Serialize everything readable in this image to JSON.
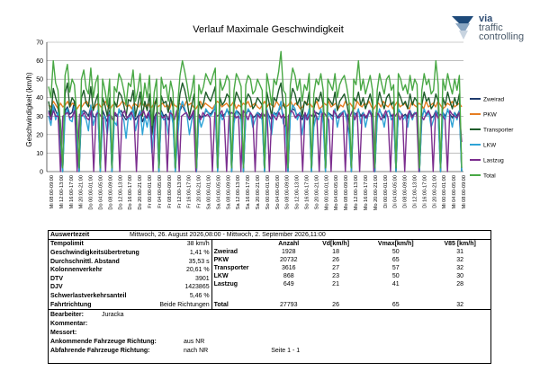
{
  "logo": {
    "line1": "via",
    "line2": "traffic",
    "line3": "controlling"
  },
  "page_label": "Seite 1 - 1",
  "chart_data": {
    "type": "line",
    "title": "Verlauf  Maximale Geschwindigkeit",
    "ylabel": "Geschwindigkeit (km/h)",
    "ylim": [
      0,
      70
    ],
    "yticks": [
      0,
      10,
      20,
      30,
      40,
      50,
      60,
      70
    ],
    "grid": true,
    "legend_position": "right",
    "x_tick_labels": [
      "Mi 08:00-09:00",
      "Mi 12:00-13:00",
      "Mi 16:00-17:00",
      "Mi 20:00-21:00",
      "Do 00:00-01:00",
      "Do 04:00-05:00",
      "Do 08:00-09:00",
      "Do 12:00-13:00",
      "Do 16:00-17:00",
      "Do 20:00-21:00",
      "Fr 00:00-01:00",
      "Fr 04:00-05:00",
      "Fr 08:00-09:00",
      "Fr 12:00-13:00",
      "Fr 16:00-17:00",
      "Fr 20:00-21:00",
      "Sa 00:00-01:00",
      "Sa 04:00-05:00",
      "Sa 08:00-09:00",
      "Sa 12:00-13:00",
      "Sa 16:00-17:00",
      "Sa 20:00-21:00",
      "So 00:00-01:00",
      "So 04:00-05:00",
      "So 08:00-09:00",
      "So 12:00-13:00",
      "So 16:00-17:00",
      "So 20:00-21:00",
      "Mo 00:00-01:00",
      "Mo 04:00-05:00",
      "Mo 08:00-09:00",
      "Mo 12:00-13:00",
      "Mo 16:00-17:00",
      "Mo 20:00-21:00",
      "Di 00:00-01:00",
      "Di 04:00-05:00",
      "Di 08:00-09:00",
      "Di 12:00-13:00",
      "Di 16:00-17:00",
      "Di 20:00-21:00",
      "Mi 00:00-01:00",
      "Mi 04:00-05:00",
      "Mi 08:00-09:00"
    ],
    "series": [
      {
        "name": "Zweirad",
        "color": "#1f3b6e",
        "values": [
          33,
          30,
          36,
          33,
          30,
          28,
          0,
          33,
          35,
          31,
          32,
          38,
          28,
          0,
          32,
          33,
          32,
          30,
          35,
          30,
          29,
          33,
          0,
          33,
          30,
          27,
          33,
          0,
          31,
          30,
          32,
          33,
          30,
          28,
          30,
          32,
          33,
          28,
          30,
          33,
          27,
          30,
          29,
          33,
          20,
          29,
          32,
          0,
          33,
          30,
          31,
          28,
          32,
          29,
          0,
          27,
          33,
          36,
          33,
          31,
          28,
          30,
          33,
          0,
          31,
          29,
          30,
          33,
          32,
          31,
          33,
          34,
          0,
          32,
          30,
          31,
          33,
          32,
          0,
          30,
          33,
          32,
          30,
          0,
          31,
          33,
          32,
          29,
          30,
          32,
          31,
          30,
          0,
          33,
          30,
          28,
          32,
          31,
          33,
          35,
          30,
          29,
          0,
          31,
          34,
          33,
          30,
          32,
          28,
          31,
          30,
          33,
          0,
          29,
          32,
          31,
          33,
          30,
          0,
          32,
          31,
          30,
          33,
          29,
          31,
          32,
          33,
          30,
          28,
          0,
          32,
          31,
          33,
          30,
          32,
          29,
          31,
          33,
          30,
          0,
          30,
          33,
          31,
          29,
          32,
          33,
          30,
          31,
          0,
          33,
          32,
          30,
          31,
          29,
          33,
          30,
          32,
          31,
          0,
          30,
          33,
          31,
          32,
          29,
          30,
          33,
          31,
          0,
          32,
          30,
          33,
          31,
          29,
          32,
          30,
          33,
          0
        ]
      },
      {
        "name": "PKW",
        "color": "#e67e22",
        "values": [
          36,
          35,
          38,
          36,
          34,
          37,
          35,
          36,
          38,
          35,
          37,
          36,
          34,
          36,
          35,
          37,
          38,
          36,
          35,
          34,
          36,
          37,
          35,
          36,
          38,
          35,
          34,
          36,
          37,
          35,
          36,
          38,
          37,
          35,
          36,
          34,
          37,
          36,
          35,
          38,
          36,
          35,
          37,
          34,
          36,
          38,
          35,
          36,
          37,
          35,
          36,
          34,
          38,
          36,
          35,
          37,
          36,
          35,
          38,
          36,
          37,
          35,
          34,
          36,
          38,
          35,
          37,
          36,
          35,
          34,
          36,
          38,
          37,
          35,
          36,
          37,
          35,
          36,
          38,
          34,
          36,
          35,
          37,
          36,
          38,
          35,
          36,
          37,
          35,
          34,
          36,
          38,
          35,
          37,
          36,
          35,
          38,
          36,
          34,
          37,
          35,
          36,
          38,
          35,
          37,
          36,
          34,
          35,
          38,
          36,
          37,
          35,
          36,
          38,
          34,
          35,
          37,
          36,
          38,
          35,
          36,
          37,
          34,
          36,
          35,
          38,
          36,
          37,
          35,
          34,
          38,
          36,
          35,
          37,
          36,
          38,
          35,
          34,
          36,
          37,
          35,
          38,
          36,
          35,
          37,
          34,
          36,
          38,
          35,
          36,
          37,
          35,
          34,
          38,
          36,
          35,
          37,
          36,
          34,
          38,
          35,
          36,
          37,
          35,
          38,
          36,
          34,
          35,
          37,
          36,
          38,
          35,
          36,
          37,
          35
        ]
      },
      {
        "name": "Transporter",
        "color": "#1e5c2a",
        "values": [
          38,
          30,
          45,
          40,
          36,
          20,
          0,
          42,
          48,
          35,
          40,
          38,
          25,
          0,
          40,
          44,
          37,
          35,
          46,
          33,
          38,
          42,
          0,
          40,
          36,
          30,
          40,
          0,
          38,
          35,
          43,
          41,
          36,
          30,
          39,
          38,
          44,
          30,
          36,
          43,
          30,
          38,
          33,
          42,
          20,
          35,
          40,
          0,
          41,
          37,
          38,
          32,
          40,
          35,
          0,
          30,
          42,
          48,
          44,
          38,
          30,
          36,
          42,
          0,
          38,
          34,
          37,
          43,
          40,
          38,
          42,
          46,
          0,
          40,
          36,
          38,
          42,
          40,
          0,
          36,
          43,
          40,
          37,
          0,
          38,
          42,
          40,
          34,
          36,
          40,
          38,
          36,
          0,
          43,
          37,
          30,
          40,
          38,
          44,
          48,
          36,
          34,
          0,
          38,
          45,
          42,
          36,
          40,
          30,
          38,
          36,
          43,
          0,
          34,
          40,
          38,
          43,
          36,
          0,
          40,
          38,
          36,
          43,
          33,
          38,
          40,
          42,
          37,
          30,
          0,
          40,
          38,
          43,
          36,
          40,
          34,
          38,
          42,
          36,
          0,
          36,
          43,
          38,
          34,
          40,
          42,
          36,
          38,
          0,
          43,
          40,
          36,
          38,
          34,
          42,
          36,
          40,
          38,
          0,
          36,
          43,
          38,
          40,
          34,
          36,
          42,
          38,
          0,
          40,
          36,
          43,
          38,
          34,
          40,
          36,
          42,
          0
        ]
      },
      {
        "name": "LKW",
        "color": "#2ea3d6",
        "values": [
          30,
          25,
          36,
          28,
          32,
          10,
          0,
          30,
          34,
          28,
          27,
          35,
          15,
          0,
          33,
          30,
          28,
          22,
          36,
          25,
          30,
          33,
          0,
          28,
          30,
          20,
          32,
          0,
          27,
          25,
          34,
          30,
          28,
          18,
          30,
          28,
          35,
          22,
          28,
          33,
          20,
          30,
          24,
          32,
          10,
          26,
          31,
          0,
          32,
          28,
          29,
          20,
          33,
          26,
          0,
          18,
          34,
          38,
          34,
          30,
          20,
          28,
          32,
          0,
          30,
          24,
          28,
          34,
          32,
          30,
          32,
          36,
          0,
          32,
          28,
          30,
          34,
          30,
          0,
          26,
          33,
          30,
          28,
          0,
          30,
          34,
          32,
          24,
          28,
          32,
          30,
          28,
          0,
          34,
          28,
          20,
          32,
          30,
          33,
          38,
          26,
          24,
          0,
          30,
          36,
          34,
          28,
          32,
          20,
          30,
          28,
          34,
          0,
          24,
          30,
          28,
          34,
          26,
          0,
          32,
          30,
          28,
          34,
          24,
          30,
          32,
          33,
          28,
          20,
          0,
          32,
          30,
          34,
          26,
          32,
          24,
          30,
          33,
          28,
          0,
          28,
          34,
          30,
          24,
          32,
          33,
          28,
          30,
          0,
          34,
          32,
          28,
          30,
          24,
          33,
          28,
          32,
          30,
          0,
          28,
          34,
          30,
          32,
          24,
          28,
          33,
          30,
          0,
          32,
          28,
          34,
          30,
          24,
          32,
          28,
          33,
          0
        ]
      },
      {
        "name": "Lastzug",
        "color": "#7b2d8e",
        "values": [
          32,
          28,
          33,
          30,
          30,
          0,
          30,
          31,
          32,
          29,
          30,
          33,
          0,
          31,
          30,
          32,
          29,
          28,
          33,
          0,
          31,
          32,
          30,
          29,
          0,
          30,
          31,
          28,
          32,
          30,
          0,
          31,
          33,
          29,
          30,
          32,
          28,
          0,
          30,
          31,
          33,
          29,
          32,
          28,
          0,
          30,
          32,
          31,
          29,
          30,
          0,
          32,
          31,
          28,
          33,
          0,
          30,
          31,
          32,
          29,
          30,
          33,
          0,
          31,
          28,
          32,
          30,
          31,
          29,
          0,
          32,
          30,
          31,
          33,
          28,
          0,
          30,
          32,
          31,
          29,
          30,
          0,
          33,
          31,
          28,
          32,
          30,
          0,
          31,
          29,
          32,
          30,
          33,
          0,
          31,
          30,
          28,
          32,
          29,
          31,
          0,
          30,
          33,
          32,
          29,
          31,
          30,
          0,
          32,
          28,
          31,
          30,
          33,
          29,
          0,
          31,
          32,
          30,
          28,
          0,
          33,
          31,
          29,
          30,
          32,
          0,
          31,
          30,
          33,
          28,
          32,
          0,
          30,
          31,
          29,
          33,
          30,
          0,
          32,
          31,
          28,
          30,
          33,
          29,
          0,
          31,
          30,
          32,
          28,
          31,
          0,
          30,
          33,
          29,
          31,
          32,
          0,
          30,
          28,
          31,
          33,
          30,
          0,
          32,
          29,
          31,
          30,
          28,
          0,
          33,
          31,
          30,
          29,
          32,
          16
        ]
      },
      {
        "name": "Total",
        "color": "#49a845",
        "values": [
          46,
          40,
          60,
          48,
          44,
          26,
          2,
          52,
          58,
          43,
          50,
          47,
          30,
          2,
          50,
          55,
          45,
          42,
          56,
          40,
          48,
          52,
          2,
          50,
          44,
          36,
          50,
          2,
          46,
          43,
          53,
          50,
          44,
          36,
          48,
          46,
          55,
          38,
          44,
          53,
          36,
          48,
          40,
          52,
          25,
          43,
          50,
          2,
          51,
          45,
          47,
          38,
          49,
          43,
          2,
          36,
          52,
          60,
          54,
          47,
          38,
          44,
          52,
          2,
          47,
          42,
          46,
          53,
          50,
          47,
          52,
          56,
          2,
          50,
          44,
          47,
          52,
          49,
          2,
          44,
          53,
          50,
          46,
          2,
          47,
          52,
          50,
          42,
          44,
          50,
          47,
          44,
          2,
          53,
          46,
          36,
          50,
          47,
          54,
          65,
          44,
          42,
          2,
          47,
          56,
          52,
          44,
          50,
          38,
          47,
          44,
          53,
          2,
          42,
          50,
          47,
          53,
          44,
          2,
          50,
          47,
          44,
          53,
          40,
          47,
          50,
          52,
          46,
          38,
          2,
          50,
          47,
          60,
          44,
          50,
          42,
          47,
          52,
          44,
          2,
          44,
          53,
          47,
          42,
          50,
          52,
          44,
          47,
          2,
          53,
          50,
          44,
          47,
          42,
          52,
          44,
          50,
          47,
          2,
          44,
          53,
          47,
          50,
          42,
          44,
          60,
          47,
          2,
          50,
          44,
          53,
          47,
          42,
          50,
          44,
          52,
          2
        ]
      }
    ]
  },
  "info": {
    "auswertezeit_label": "Auswertezeit",
    "auswertezeit_value": "Mittwoch, 26. August 2026,08:00  -  Mittwoch, 2. September 2026,11:00",
    "left_rows": [
      {
        "label": "Tempolimit",
        "value": "38 km/h"
      },
      {
        "label": "Geschwindigkeitsübertretung",
        "value": "1,41 %"
      },
      {
        "label": "Durchschnittl. Abstand",
        "value": "35,53 s"
      },
      {
        "label": "Kolonnenverkehr",
        "value": "20,61 %"
      },
      {
        "label": "DTV",
        "value": "3901"
      },
      {
        "label": "DJV",
        "value": "1423865"
      },
      {
        "label": "Schwerlastverkehrsanteil",
        "value": "5,46 %"
      },
      {
        "label": "Fahrtrichtung",
        "value": "Beide Richtungen"
      }
    ],
    "table_headers": [
      "Anzahl",
      "Vd[km/h]",
      "Vmax[km/h]",
      "V85 [km/h]"
    ],
    "table_rows": [
      {
        "name": "Zweirad",
        "anzahl": "1928",
        "vd": "18",
        "vmax": "50",
        "v85": "31"
      },
      {
        "name": "PKW",
        "anzahl": "20732",
        "vd": "26",
        "vmax": "65",
        "v85": "32"
      },
      {
        "name": "Transporter",
        "anzahl": "3616",
        "vd": "27",
        "vmax": "57",
        "v85": "32"
      },
      {
        "name": "LKW",
        "anzahl": "868",
        "vd": "23",
        "vmax": "50",
        "v85": "30"
      },
      {
        "name": "Lastzug",
        "anzahl": "649",
        "vd": "21",
        "vmax": "41",
        "v85": "28"
      }
    ],
    "total": {
      "name": "Total",
      "anzahl": "27793",
      "vd": "26",
      "vmax": "65",
      "v85": "32"
    },
    "bearbeiter_label": "Bearbeiter:",
    "bearbeiter_value": "Juracka",
    "kommentar_label": "Kommentar:",
    "messort_label": "Messort:",
    "ankommende_label": "Ankommende Fahrzeuge Richtung:",
    "ankommende_value": "aus NR",
    "abfahrende_label": "Abfahrende Fahrzeuge Richtung:",
    "abfahrende_value": "nach NR"
  }
}
